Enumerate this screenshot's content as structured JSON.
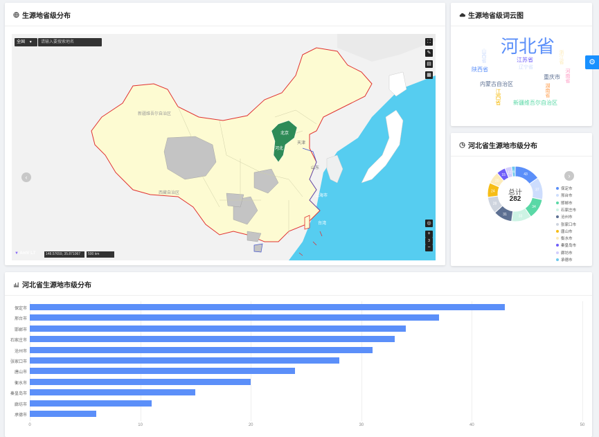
{
  "map_card": {
    "title": "生源地省级分布",
    "region_select": "全国",
    "search_placeholder": "请输入要搜索地名",
    "coord_readout": "148.57659, 35.871067",
    "scale_label": "500 km",
    "logo": "AntV L7",
    "map_labels": {
      "xinjiang": "新疆维吾尔自治区",
      "xizang": "西藏自治区",
      "hebei": "河北",
      "beijing": "北京",
      "tianjin": "天津",
      "shandong": "山东",
      "shanghai": "上海市",
      "taiwan": "台湾"
    },
    "colors": {
      "ocean": "#56cdf0",
      "land": "#fdfbd2",
      "hebei": "#2e8b57",
      "gray": "#c4c4c4",
      "border": "#e03030"
    }
  },
  "wordcloud_card": {
    "title": "生源地省级词云图",
    "words": [
      "河北省",
      "江苏省",
      "辽宁省",
      "陕西省",
      "重庆市",
      "内蒙古自治区",
      "新疆维吾尔自治区",
      "山西省",
      "江西省",
      "浙江省",
      "湖南省",
      "河南省"
    ]
  },
  "donut_card": {
    "title": "河北省生源地市级分布",
    "center_label": "总计",
    "total": "282",
    "slice_labels": [
      "43",
      "37",
      "34",
      "33",
      "31",
      "28",
      "24",
      "20",
      "15",
      "11",
      "6"
    ]
  },
  "legend": [
    {
      "name": "保定市",
      "color": "#5b8ff9"
    },
    {
      "name": "邢台市",
      "color": "#cdddfd"
    },
    {
      "name": "邯郸市",
      "color": "#5ad8a6"
    },
    {
      "name": "石家庄市",
      "color": "#cdf3e4"
    },
    {
      "name": "沧州市",
      "color": "#5d7092"
    },
    {
      "name": "张家口市",
      "color": "#ced4de"
    },
    {
      "name": "唐山市",
      "color": "#f6bd16"
    },
    {
      "name": "衡水市",
      "color": "#fcebb9"
    },
    {
      "name": "秦皇岛市",
      "color": "#6f5ef9"
    },
    {
      "name": "廊坊市",
      "color": "#d3cefd"
    },
    {
      "name": "承德市",
      "color": "#6dc8ec"
    }
  ],
  "bar_card": {
    "title": "河北省生源地市级分布"
  },
  "chart_data": {
    "type": "bar",
    "orientation": "horizontal",
    "categories": [
      "保定市",
      "邢台市",
      "邯郸市",
      "石家庄市",
      "沧州市",
      "张家口市",
      "唐山市",
      "衡水市",
      "秦皇岛市",
      "廊坊市",
      "承德市"
    ],
    "values": [
      43,
      37,
      34,
      33,
      31,
      28,
      24,
      20,
      15,
      11,
      6
    ],
    "xlim": [
      0,
      50
    ],
    "xticks": [
      "0",
      "10",
      "20",
      "30",
      "40",
      "50"
    ],
    "color": "#5b8ff9",
    "grid": true
  }
}
